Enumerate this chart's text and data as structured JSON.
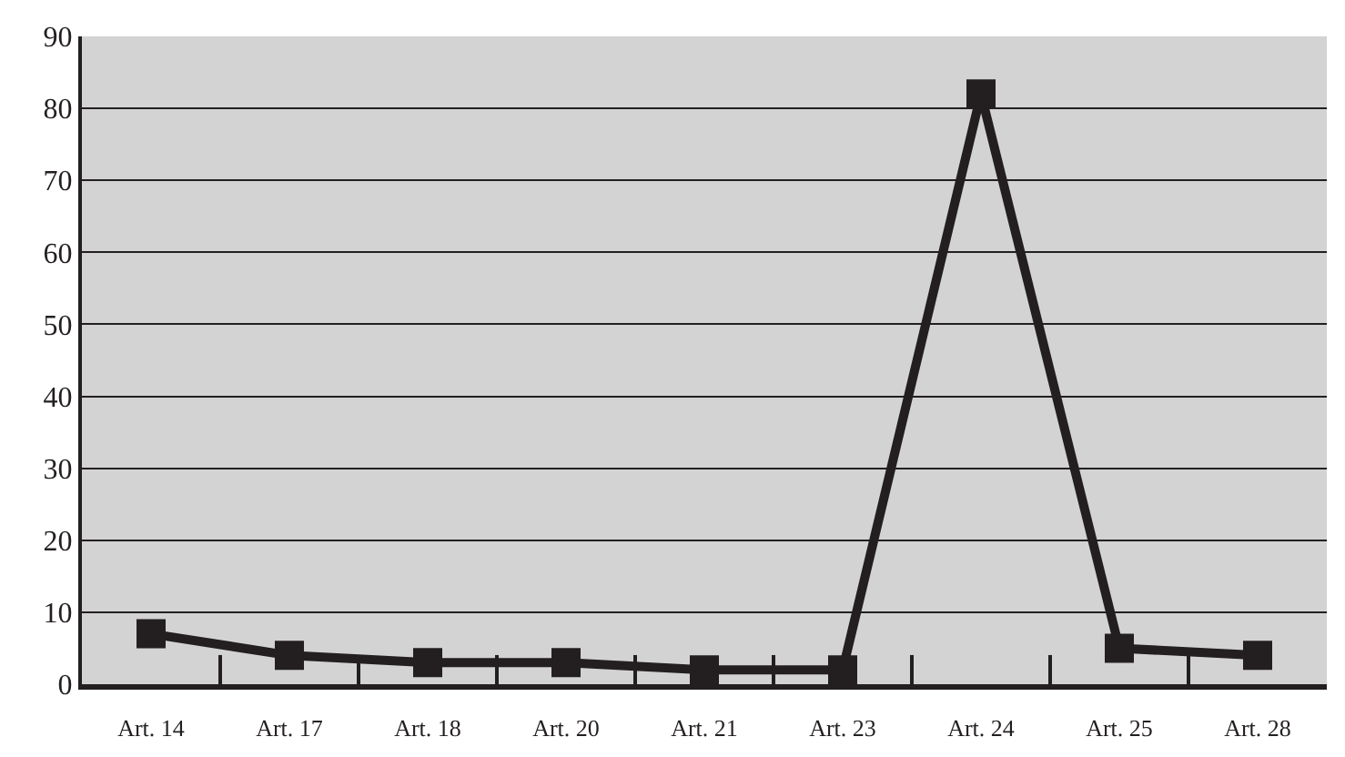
{
  "chart_data": {
    "type": "line",
    "categories": [
      "Art. 14",
      "Art. 17",
      "Art. 18",
      "Art. 20",
      "Art. 21",
      "Art. 23",
      "Art. 24",
      "Art. 25",
      "Art. 28"
    ],
    "series": [
      {
        "color": "#231f20",
        "values": [
          7,
          4,
          3,
          3,
          2,
          2,
          82,
          5,
          4
        ]
      }
    ],
    "ylim": [
      0,
      90
    ],
    "yticks": [
      0,
      10,
      20,
      30,
      40,
      50,
      60,
      70,
      80,
      90
    ],
    "grid": "y",
    "marker": "square",
    "line_style": "solid"
  }
}
